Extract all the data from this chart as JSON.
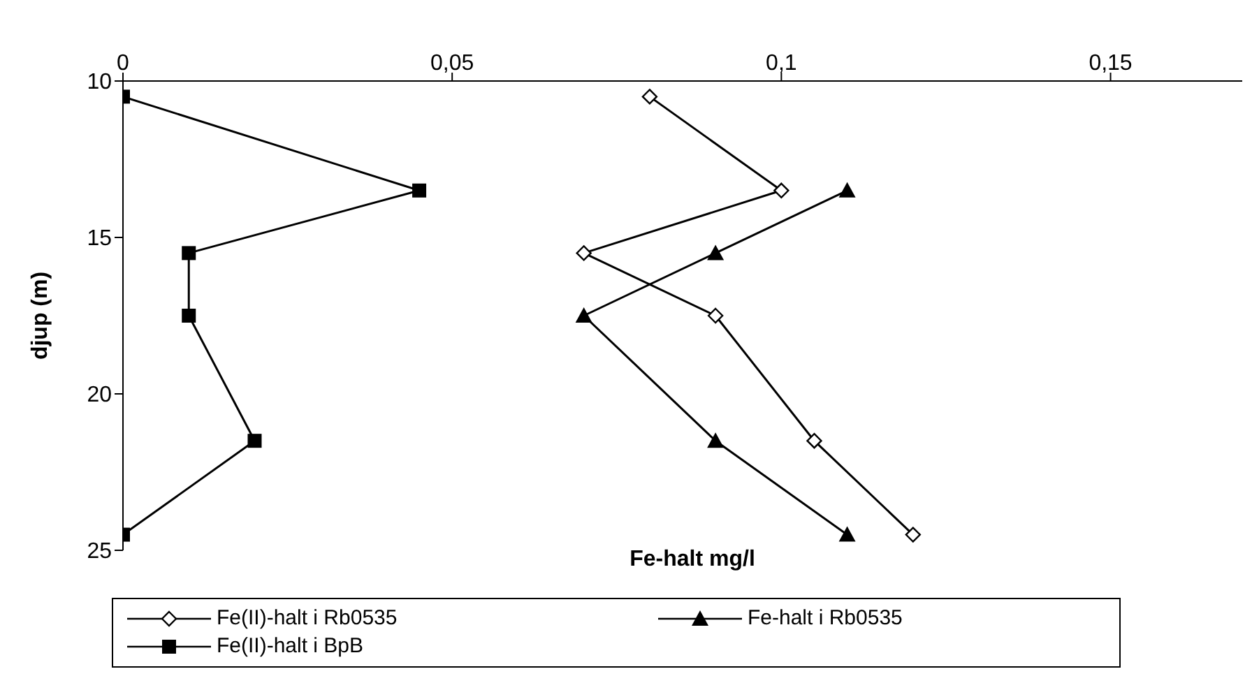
{
  "chart_data": {
    "type": "line",
    "xlabel": "Fe-halt mg/l",
    "ylabel": "djup (m)",
    "xlim": [
      0,
      0.17
    ],
    "xticks": [
      0,
      {
        "value": 0.05,
        "label": "0,05"
      },
      {
        "value": 0.1,
        "label": "0,1"
      },
      {
        "value": 0.15,
        "label": "0,15"
      }
    ],
    "ylim": [
      25,
      10
    ],
    "yticks": [
      10,
      15,
      20,
      25
    ],
    "grid": false,
    "legend": "bottom",
    "series": [
      {
        "name": "Fe(II)-halt i Rb0535",
        "color": "#000000",
        "marker": "diamond",
        "x": [
          0.08,
          0.1,
          0.07,
          0.09,
          0.105,
          0.12
        ],
        "values": [
          10.5,
          13.5,
          15.5,
          17.5,
          21.5,
          24.5
        ]
      },
      {
        "name": "Fe-halt i Rb0535",
        "color": "#000000",
        "marker": "triangle",
        "x": [
          0.11,
          0.09,
          0.07,
          0.09,
          0.11
        ],
        "values": [
          13.5,
          15.5,
          17.5,
          21.5,
          24.5
        ]
      },
      {
        "name": "Fe(II)-halt i BpB",
        "color": "#000000",
        "marker": "square",
        "x": [
          0,
          0.045,
          0.01,
          0.01,
          0.02,
          0
        ],
        "values": [
          10.5,
          13.5,
          15.5,
          17.5,
          21.5,
          24.5
        ]
      }
    ]
  }
}
